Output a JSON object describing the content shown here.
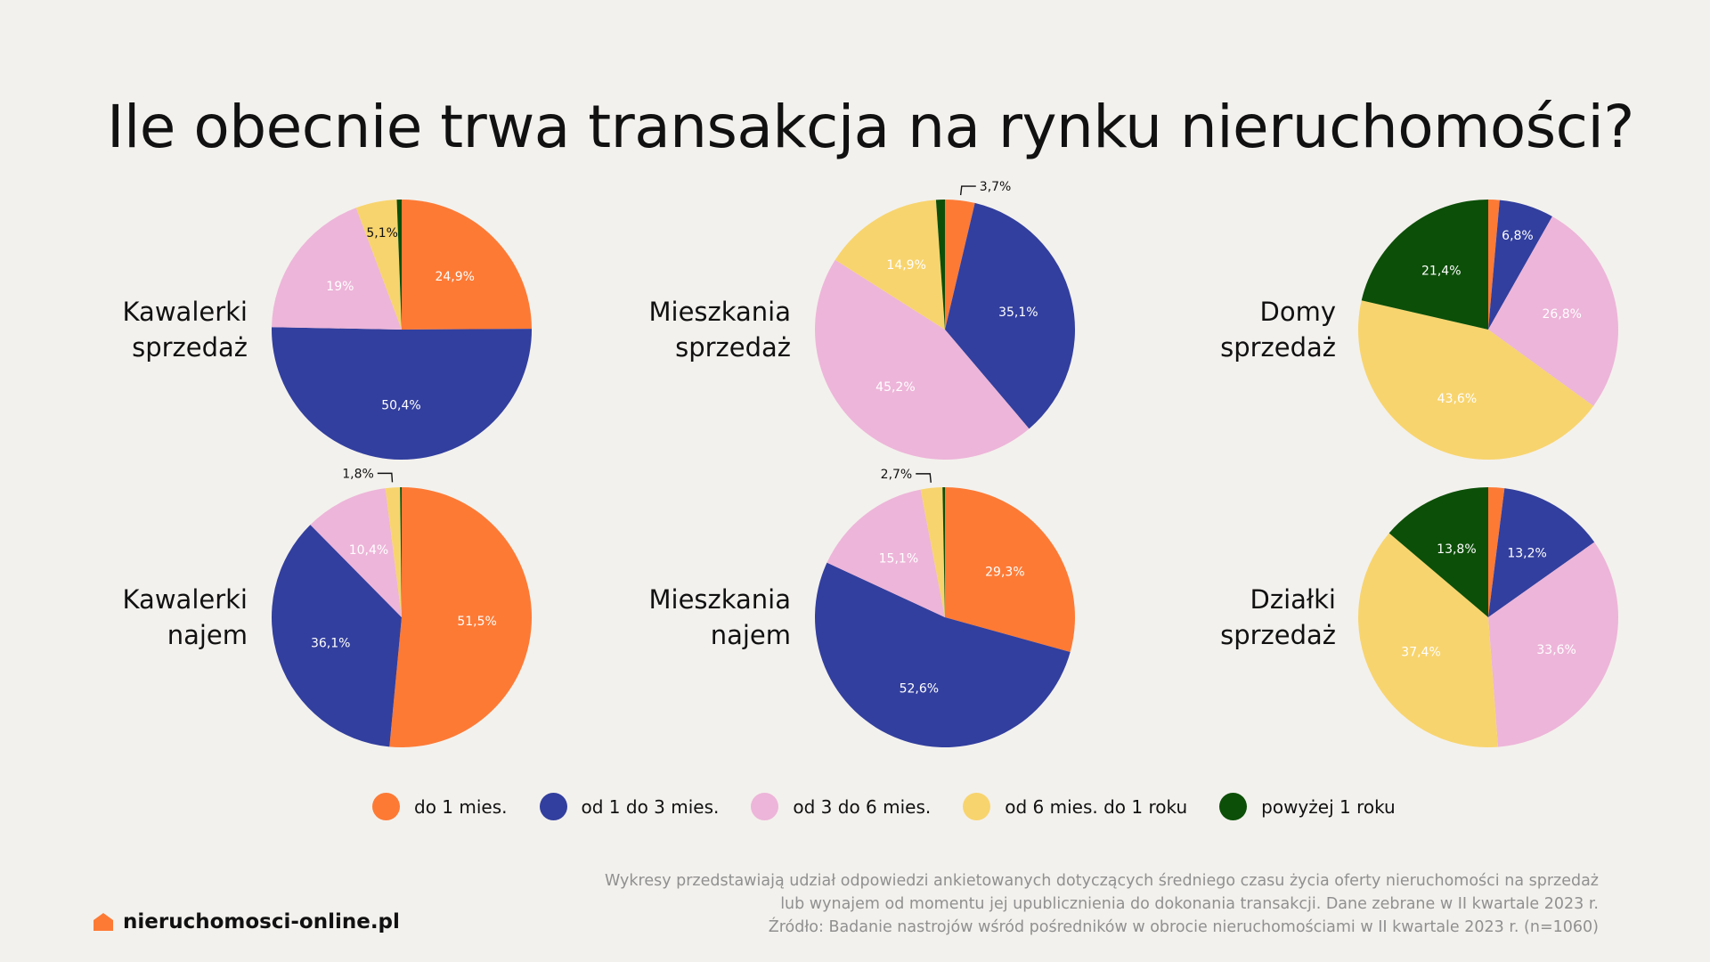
{
  "title": "Ile obecnie trwa transakcja na rynku nieruchomości?",
  "colors": {
    "do1": "#fd7a35",
    "od1do3": "#323f9e",
    "od3do6": "#edb5d9",
    "od6do12": "#f8d46e",
    "powyzej": "#0c4f08"
  },
  "legend": [
    {
      "key": "do1",
      "label": "do 1 mies."
    },
    {
      "key": "od1do3",
      "label": "od 1 do 3 mies."
    },
    {
      "key": "od3do6",
      "label": "od 3 do 6 mies."
    },
    {
      "key": "od6do12",
      "label": "od 6 mies. do 1 roku"
    },
    {
      "key": "powyzej",
      "label": "powyżej 1 roku"
    }
  ],
  "chart_data": [
    {
      "type": "pie",
      "label_lines": [
        "Kawalerki",
        "sprzedaż"
      ],
      "slices": [
        {
          "key": "do1",
          "value": 24.9,
          "label": "24,9%"
        },
        {
          "key": "od1do3",
          "value": 50.4,
          "label": "50,4%"
        },
        {
          "key": "od3do6",
          "value": 19.0,
          "label": "19%"
        },
        {
          "key": "od6do12",
          "value": 5.1,
          "label": "5,1%"
        },
        {
          "key": "powyzej",
          "value": 0.6,
          "label": ""
        }
      ]
    },
    {
      "type": "pie",
      "label_lines": [
        "Mieszkania",
        "sprzedaż"
      ],
      "slices": [
        {
          "key": "do1",
          "value": 3.7,
          "label": "3,7%"
        },
        {
          "key": "od1do3",
          "value": 35.1,
          "label": "35,1%"
        },
        {
          "key": "od3do6",
          "value": 45.2,
          "label": "45,2%"
        },
        {
          "key": "od6do12",
          "value": 14.9,
          "label": "14,9%"
        },
        {
          "key": "powyzej",
          "value": 1.1,
          "label": ""
        }
      ]
    },
    {
      "type": "pie",
      "label_lines": [
        "Domy",
        "sprzedaż"
      ],
      "slices": [
        {
          "key": "do1",
          "value": 1.4,
          "label": ""
        },
        {
          "key": "od1do3",
          "value": 6.8,
          "label": "6,8%"
        },
        {
          "key": "od3do6",
          "value": 26.8,
          "label": "26,8%"
        },
        {
          "key": "od6do12",
          "value": 43.6,
          "label": "43,6%"
        },
        {
          "key": "powyzej",
          "value": 21.4,
          "label": "21,4%"
        }
      ]
    },
    {
      "type": "pie",
      "label_lines": [
        "Kawalerki",
        "najem"
      ],
      "slices": [
        {
          "key": "do1",
          "value": 51.5,
          "label": "51,5%"
        },
        {
          "key": "od1do3",
          "value": 36.1,
          "label": "36,1%"
        },
        {
          "key": "od3do6",
          "value": 10.4,
          "label": "10,4%"
        },
        {
          "key": "od6do12",
          "value": 1.8,
          "label": "1,8%"
        },
        {
          "key": "powyzej",
          "value": 0.2,
          "label": ""
        }
      ]
    },
    {
      "type": "pie",
      "label_lines": [
        "Mieszkania",
        "najem"
      ],
      "slices": [
        {
          "key": "do1",
          "value": 29.3,
          "label": "29,3%"
        },
        {
          "key": "od1do3",
          "value": 52.6,
          "label": "52,6%"
        },
        {
          "key": "od3do6",
          "value": 15.1,
          "label": "15,1%"
        },
        {
          "key": "od6do12",
          "value": 2.7,
          "label": "2,7%"
        },
        {
          "key": "powyzej",
          "value": 0.3,
          "label": ""
        }
      ]
    },
    {
      "type": "pie",
      "label_lines": [
        "Działki",
        "sprzedaż"
      ],
      "slices": [
        {
          "key": "do1",
          "value": 2.0,
          "label": ""
        },
        {
          "key": "od1do3",
          "value": 13.2,
          "label": "13,2%"
        },
        {
          "key": "od3do6",
          "value": 33.6,
          "label": "33,6%"
        },
        {
          "key": "od6do12",
          "value": 37.4,
          "label": "37,4%"
        },
        {
          "key": "powyzej",
          "value": 13.8,
          "label": "13,8%"
        }
      ]
    }
  ],
  "footnote": [
    "Wykresy przedstawiają udział odpowiedzi ankietowanych dotyczących średniego czasu życia oferty nieruchomości na sprzedaż",
    "lub wynajem od momentu jej upublicznienia do dokonania transakcji. Dane zebrane w II kwartale 2023 r.",
    "Źródło: Badanie nastrojów wśród pośredników w obrocie nieruchomościami w II kwartale 2023 r. (n=1060)"
  ],
  "brand": {
    "name": "nieruchomosci-online.pl",
    "icon": "house-icon"
  }
}
